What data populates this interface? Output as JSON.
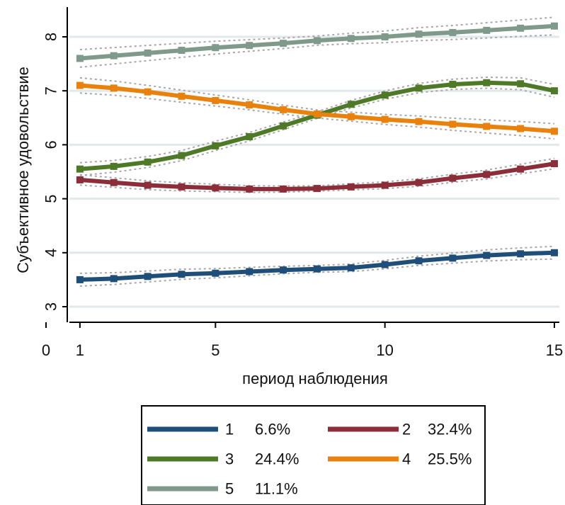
{
  "chart_data": {
    "type": "line",
    "xlabel": "период наблюдения",
    "ylabel": "Субъективное удовольствие",
    "xlim": [
      0,
      15
    ],
    "ylim": [
      3,
      8.4
    ],
    "x_ticks": [
      "0",
      "1",
      "5",
      "10",
      "15"
    ],
    "x_tick_values": [
      0,
      1,
      5,
      10,
      15
    ],
    "y_ticks": [
      "3",
      "4",
      "5",
      "6",
      "7",
      "8"
    ],
    "y_tick_values": [
      3,
      4,
      5,
      6,
      7,
      8
    ],
    "grid": true,
    "legend_position": "bottom",
    "x": [
      1,
      2,
      3,
      4,
      5,
      6,
      7,
      8,
      9,
      10,
      11,
      12,
      13,
      14,
      15
    ],
    "series": [
      {
        "name": "1",
        "share": "6.6%",
        "color": "#1f4e79",
        "values": [
          3.5,
          3.52,
          3.56,
          3.6,
          3.62,
          3.65,
          3.68,
          3.7,
          3.72,
          3.78,
          3.85,
          3.9,
          3.95,
          3.98,
          4.0
        ]
      },
      {
        "name": "2",
        "share": "32.4%",
        "color": "#8b2e3a",
        "values": [
          5.35,
          5.3,
          5.25,
          5.22,
          5.2,
          5.18,
          5.18,
          5.19,
          5.22,
          5.25,
          5.3,
          5.38,
          5.45,
          5.55,
          5.65
        ]
      },
      {
        "name": "3",
        "share": "24.4%",
        "color": "#4e7a28",
        "values": [
          5.55,
          5.6,
          5.68,
          5.8,
          5.98,
          6.15,
          6.35,
          6.55,
          6.75,
          6.92,
          7.05,
          7.12,
          7.15,
          7.13,
          7.0
        ]
      },
      {
        "name": "4",
        "share": "25.5%",
        "color": "#e8820c",
        "values": [
          7.1,
          7.05,
          6.98,
          6.9,
          6.82,
          6.74,
          6.65,
          6.57,
          6.52,
          6.47,
          6.43,
          6.38,
          6.34,
          6.3,
          6.25
        ]
      },
      {
        "name": "5",
        "share": "11.1%",
        "color": "#7f9a8a",
        "values": [
          7.6,
          7.65,
          7.7,
          7.75,
          7.8,
          7.84,
          7.88,
          7.93,
          7.97,
          8.0,
          8.05,
          8.08,
          8.12,
          8.16,
          8.2
        ]
      }
    ]
  }
}
